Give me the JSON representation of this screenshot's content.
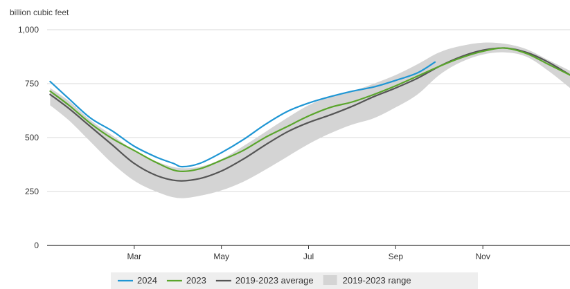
{
  "chart_data": {
    "type": "line",
    "ylabel": "billion cubic feet",
    "ylim": [
      0,
      1000
    ],
    "yticks": [
      {
        "value": 0,
        "label": "0"
      },
      {
        "value": 250,
        "label": "250"
      },
      {
        "value": 500,
        "label": "500"
      },
      {
        "value": 750,
        "label": "750"
      },
      {
        "value": 1000,
        "label": "1,000"
      }
    ],
    "xlim": [
      0,
      12
    ],
    "xticks": [
      {
        "value": 2,
        "label": "Mar"
      },
      {
        "value": 4,
        "label": "May"
      },
      {
        "value": 6,
        "label": "Jul"
      },
      {
        "value": 8,
        "label": "Sep"
      },
      {
        "value": 10,
        "label": "Nov"
      }
    ],
    "grid": true,
    "legend_position": "bottom",
    "range": {
      "name": "2019-2023 range",
      "color": "#d4d4d4",
      "x": [
        0.07,
        0.5,
        1.0,
        1.5,
        2.0,
        2.5,
        3.0,
        3.5,
        4.0,
        4.5,
        5.0,
        5.5,
        6.0,
        6.5,
        7.0,
        7.5,
        8.0,
        8.5,
        9.0,
        9.5,
        10.0,
        10.5,
        11.0,
        11.5,
        12.0
      ],
      "low": [
        650,
        580,
        480,
        380,
        300,
        250,
        220,
        230,
        255,
        295,
        350,
        410,
        470,
        520,
        560,
        590,
        640,
        700,
        790,
        850,
        885,
        895,
        875,
        810,
        730
      ],
      "high": [
        730,
        670,
        580,
        510,
        440,
        390,
        360,
        365,
        400,
        460,
        525,
        590,
        650,
        690,
        715,
        750,
        790,
        840,
        895,
        925,
        940,
        935,
        910,
        860,
        810
      ]
    },
    "series": [
      {
        "name": "2024",
        "color": "#1f96d4",
        "x": [
          0.07,
          0.5,
          1.0,
          1.5,
          2.0,
          2.5,
          2.9,
          3.1,
          3.5,
          4.0,
          4.5,
          5.0,
          5.5,
          6.0,
          6.5,
          7.0,
          7.5,
          8.0,
          8.5,
          8.9
        ],
        "y": [
          760,
          680,
          590,
          530,
          460,
          410,
          380,
          365,
          380,
          430,
          490,
          560,
          620,
          660,
          690,
          715,
          735,
          765,
          800,
          850
        ]
      },
      {
        "name": "2023",
        "color": "#5aa52c",
        "x": [
          0.07,
          0.5,
          1.0,
          1.5,
          2.0,
          2.5,
          3.0,
          3.5,
          4.0,
          4.5,
          5.0,
          5.5,
          6.0,
          6.5,
          7.0,
          7.5,
          8.0,
          8.5,
          9.0,
          9.5,
          10.0,
          10.5,
          11.0,
          11.5,
          12.0
        ],
        "y": [
          715,
          650,
          565,
          495,
          440,
          385,
          345,
          355,
          395,
          440,
          500,
          550,
          600,
          640,
          665,
          700,
          740,
          785,
          830,
          870,
          900,
          915,
          890,
          840,
          790
        ]
      },
      {
        "name": "2019-2023 average",
        "color": "#555555",
        "x": [
          0.07,
          0.5,
          1.0,
          1.5,
          2.0,
          2.5,
          3.0,
          3.5,
          4.0,
          4.5,
          5.0,
          5.5,
          6.0,
          6.5,
          7.0,
          7.5,
          8.0,
          8.5,
          9.0,
          9.5,
          10.0,
          10.5,
          11.0,
          11.5,
          12.0
        ],
        "y": [
          700,
          635,
          550,
          465,
          380,
          325,
          300,
          310,
          345,
          400,
          465,
          525,
          570,
          605,
          645,
          690,
          730,
          775,
          830,
          875,
          905,
          915,
          895,
          850,
          790
        ]
      }
    ]
  }
}
